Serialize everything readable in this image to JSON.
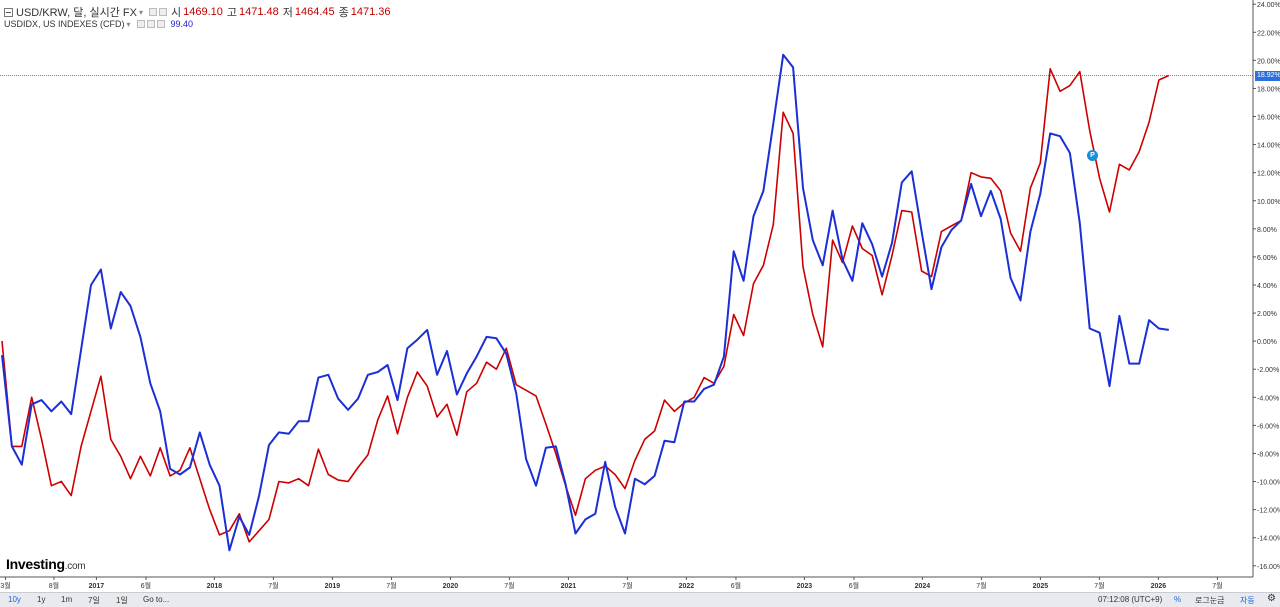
{
  "legend": {
    "symbol": "USD/KRW, 달, 실시간 FX",
    "open_key": "시",
    "open_val": "1469.10",
    "high_key": "고",
    "high_val": "1471.48",
    "low_key": "저",
    "low_val": "1464.45",
    "close_key": "종",
    "close_val": "1471.36",
    "compare_symbol": "USDIDX, US INDEXES (CFD)",
    "compare_val": "99.40"
  },
  "price_tag": "18.92%",
  "marker_label": "P",
  "logo": {
    "main": "Investing",
    "suffix": ".com"
  },
  "bottom_bar": {
    "ranges": [
      "10y",
      "1y",
      "1m",
      "7일",
      "1일"
    ],
    "goto": "Go to...",
    "time": "07:12:08 (UTC+9)",
    "percent": "%",
    "log": "로그눈금",
    "auto": "자동"
  },
  "colors": {
    "usdkrw": "#cc0000",
    "usdidx": "#1a2fd6",
    "grid": "#dcdcdc"
  },
  "chart_data": {
    "type": "line",
    "y_tick_labels": [
      "24.00%",
      "22.00%",
      "20.00%",
      "18.00%",
      "16.00%",
      "14.00%",
      "12.00%",
      "10.00%",
      "8.00%",
      "6.00%",
      "4.00%",
      "2.00%",
      "0.00%",
      "-2.00%",
      "-4.00%",
      "-6.00%",
      "-8.00%",
      "-10.00%",
      "-12.00%",
      "-14.00%",
      "-16.00%"
    ],
    "y_ticks": [
      24,
      22,
      20,
      18,
      16,
      14,
      12,
      10,
      8,
      6,
      4,
      2,
      0,
      -2,
      -4,
      -6,
      -8,
      -10,
      -12,
      -14,
      -16
    ],
    "ylim": [
      -16.8,
      24.3
    ],
    "x_ticks": [
      {
        "label": "3월",
        "t": -0.27
      },
      {
        "label": "8월",
        "t": 0.14
      },
      {
        "label": "2017",
        "t": 0.5
      },
      {
        "label": "6월",
        "t": 0.92
      },
      {
        "label": "2018",
        "t": 1.5
      },
      {
        "label": "7월",
        "t": 2.0
      },
      {
        "label": "2019",
        "t": 2.5
      },
      {
        "label": "7월",
        "t": 3.0
      },
      {
        "label": "2020",
        "t": 3.5
      },
      {
        "label": "7월",
        "t": 4.0
      },
      {
        "label": "2021",
        "t": 4.5
      },
      {
        "label": "7월",
        "t": 5.0
      },
      {
        "label": "2022",
        "t": 5.5
      },
      {
        "label": "6월",
        "t": 5.92
      },
      {
        "label": "2023",
        "t": 6.5
      },
      {
        "label": "6월",
        "t": 6.92
      },
      {
        "label": "2024",
        "t": 7.5
      },
      {
        "label": "7월",
        "t": 8.0
      },
      {
        "label": "2025",
        "t": 8.5
      },
      {
        "label": "7월",
        "t": 9.0
      },
      {
        "label": "2026",
        "t": 9.5
      },
      {
        "label": "7월",
        "t": 10.0
      }
    ],
    "x_start": -0.3,
    "x_step": 0.0838,
    "last_value_line": 18.92,
    "series": [
      {
        "name": "USD/KRW",
        "color": "#cc0000",
        "values": [
          0,
          -7.5,
          -7.5,
          -4,
          -7,
          -10.3,
          -10,
          -11,
          -7.5,
          -5,
          -2.5,
          -7,
          -8.2,
          -9.8,
          -8.2,
          -9.6,
          -7.6,
          -9.6,
          -9.2,
          -7.6,
          -9.8,
          -12,
          -13.8,
          -13.5,
          -12.3,
          -14.3,
          -13.5,
          -12.7,
          -10,
          -10.1,
          -9.8,
          -10.3,
          -7.7,
          -9.5,
          -9.9,
          -10,
          -9,
          -8.1,
          -5.6,
          -3.9,
          -6.6,
          -4,
          -2.2,
          -3.2,
          -5.4,
          -4.5,
          -6.7,
          -3.6,
          -3,
          -1.5,
          -2,
          -0.5,
          -3.1,
          -3.5,
          -3.9,
          -5.9,
          -8,
          -10.3,
          -12.4,
          -9.8,
          -9.2,
          -8.9,
          -9.5,
          -10.5,
          -8.5,
          -7,
          -6.4,
          -4.2,
          -5,
          -4.4,
          -4,
          -2.6,
          -3,
          -1.8,
          1.9,
          0.4,
          4.1,
          5.4,
          8.3,
          16.3,
          14.8,
          5.3,
          1.9,
          -0.4,
          7.2,
          5.6,
          8.2,
          6.6,
          6.1,
          3.3,
          6.1,
          9.3,
          9.2,
          5,
          4.6,
          7.8,
          8.2,
          8.6,
          12,
          11.7,
          11.6,
          10.7,
          7.7,
          6.4,
          10.9,
          12.7,
          19.4,
          17.8,
          18.2,
          19.2,
          15,
          11.6,
          9.2,
          12.6,
          12.2,
          13.5,
          15.6,
          18.6,
          18.92
        ]
      },
      {
        "name": "USDIDX",
        "color": "#1a2fd6",
        "values": [
          -1,
          -7.5,
          -8.8,
          -4.5,
          -4.2,
          -5,
          -4.3,
          -5.2,
          -0.6,
          4,
          5.1,
          0.9,
          3.5,
          2.5,
          0.3,
          -3,
          -5,
          -9.1,
          -9.5,
          -9,
          -6.5,
          -8.8,
          -10.3,
          -14.9,
          -12.5,
          -13.8,
          -11,
          -7.4,
          -6.5,
          -6.6,
          -5.7,
          -5.7,
          -2.6,
          -2.4,
          -4.1,
          -4.9,
          -4.1,
          -2.4,
          -2.2,
          -1.7,
          -4.2,
          -0.5,
          0.1,
          0.8,
          -2.4,
          -0.7,
          -3.8,
          -2.3,
          -1.1,
          0.3,
          0.2,
          -0.9,
          -3.7,
          -8.4,
          -10.3,
          -7.6,
          -7.5,
          -10.2,
          -13.7,
          -12.7,
          -12.3,
          -8.6,
          -11.8,
          -13.7,
          -9.8,
          -10.2,
          -9.6,
          -7.1,
          -7.2,
          -4.3,
          -4.3,
          -3.4,
          -3.1,
          -1.1,
          6.4,
          4.3,
          8.9,
          10.7,
          15.5,
          20.4,
          19.5,
          10.9,
          7.2,
          5.4,
          9.3,
          5.8,
          4.3,
          8.4,
          6.9,
          4.6,
          7,
          11.3,
          12.1,
          7.8,
          3.7,
          6.7,
          7.9,
          8.6,
          11.2,
          8.9,
          10.7,
          8.7,
          4.5,
          2.9,
          7.8,
          10.5,
          14.8,
          14.6,
          13.4,
          8.4,
          0.9,
          0.6,
          -3.2,
          1.8,
          -1.6,
          -1.6,
          1.5,
          0.9,
          0.8
        ]
      }
    ]
  }
}
